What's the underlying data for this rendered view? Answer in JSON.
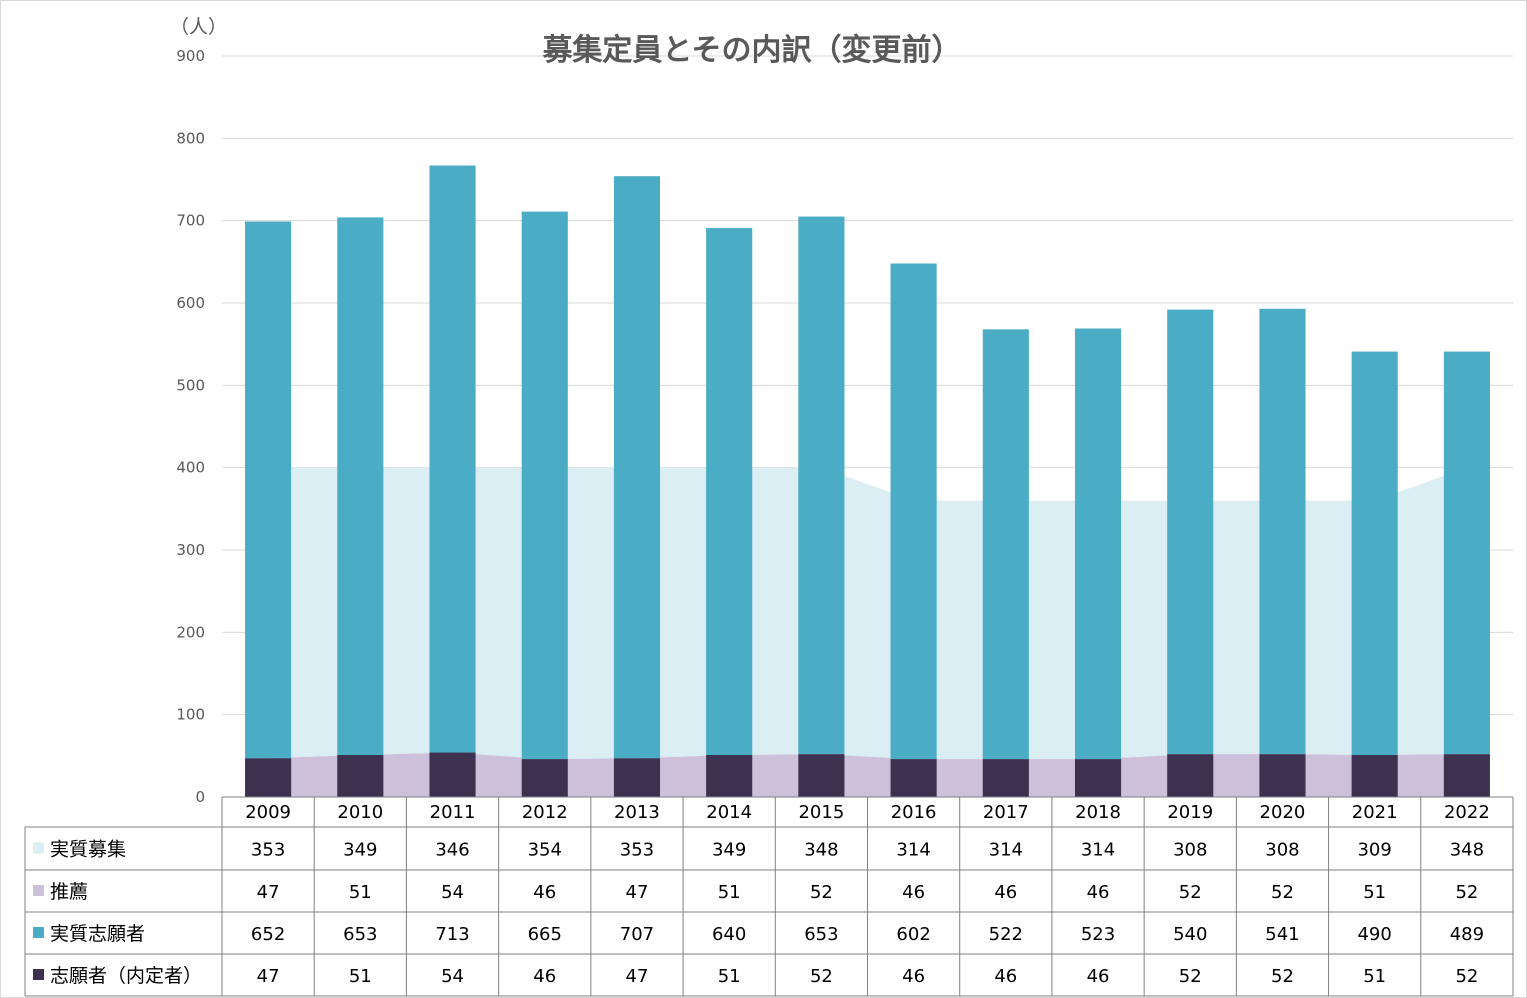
{
  "chart_data": {
    "type": "bar",
    "title": "募集定員とその内訳（変更前）",
    "y_unit": "（人）",
    "ylim": [
      0,
      900
    ],
    "yticks": [
      0,
      100,
      200,
      300,
      400,
      500,
      600,
      700,
      800,
      900
    ],
    "grid": true,
    "legend": "data-table",
    "categories": [
      "2009",
      "2010",
      "2011",
      "2012",
      "2013",
      "2014",
      "2015",
      "2016",
      "2017",
      "2018",
      "2019",
      "2020",
      "2021",
      "2022"
    ],
    "series": [
      {
        "name": "実質募集",
        "type": "area",
        "color": "#dbeef3",
        "values": [
          353,
          349,
          346,
          354,
          353,
          349,
          348,
          314,
          314,
          314,
          308,
          308,
          309,
          348
        ]
      },
      {
        "name": "推薦",
        "type": "area",
        "color": "#ccc0da",
        "values": [
          47,
          51,
          54,
          46,
          47,
          51,
          52,
          46,
          46,
          46,
          52,
          52,
          51,
          52
        ]
      },
      {
        "name": "実質志願者",
        "type": "bar",
        "color": "#4bacc6",
        "values": [
          652,
          653,
          713,
          665,
          707,
          640,
          653,
          602,
          522,
          523,
          540,
          541,
          490,
          489
        ]
      },
      {
        "name": "志願者（内定者）",
        "type": "bar",
        "color": "#3d3150",
        "values": [
          47,
          51,
          54,
          46,
          47,
          51,
          52,
          46,
          46,
          46,
          52,
          52,
          51,
          52
        ]
      }
    ]
  }
}
